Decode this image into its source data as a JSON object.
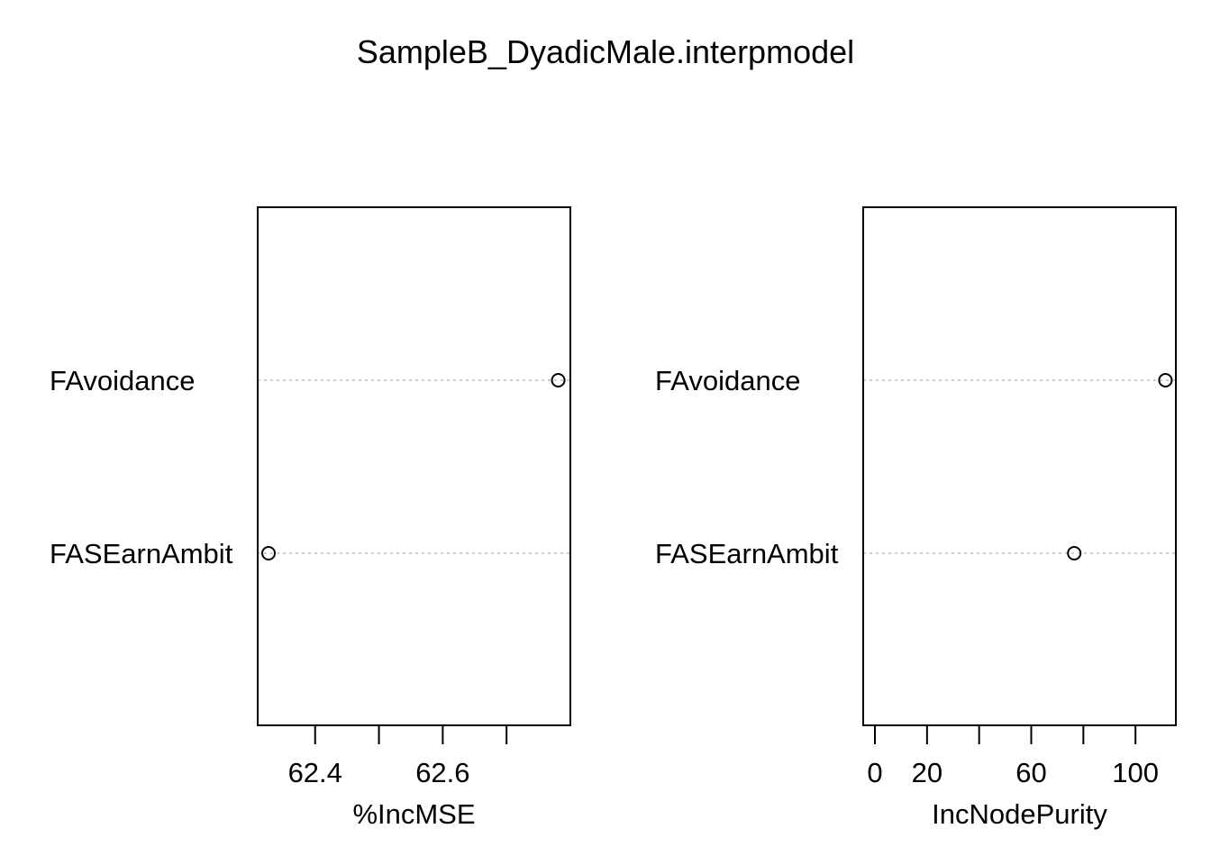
{
  "title": "SampleB_DyadicMale.interpmodel",
  "chart_data": [
    {
      "type": "scatter",
      "subtype": "dotchart",
      "title": "",
      "xlabel": "%IncMSE",
      "ylabel": "",
      "categories": [
        "FAvoidance",
        "FASEarnAmbit"
      ],
      "values": [
        62.781,
        62.327
      ],
      "xlim": [
        62.31,
        62.8
      ],
      "xticks": [
        62.4,
        62.5,
        62.6,
        62.7
      ],
      "xtick_labels": [
        "62.4",
        "",
        "62.6",
        ""
      ],
      "grid": "dotted horizontal guide lines",
      "marker": "open circle"
    },
    {
      "type": "scatter",
      "subtype": "dotchart",
      "title": "",
      "xlabel": "IncNodePurity",
      "ylabel": "",
      "categories": [
        "FAvoidance",
        "FASEarnAmbit"
      ],
      "values": [
        111.5,
        76.5
      ],
      "xlim": [
        -4.5,
        115.5
      ],
      "xticks": [
        0,
        20,
        40,
        60,
        80,
        100
      ],
      "xtick_labels": [
        "0",
        "20",
        "",
        "60",
        "",
        "100"
      ],
      "grid": "dotted horizontal guide lines",
      "marker": "open circle"
    }
  ]
}
